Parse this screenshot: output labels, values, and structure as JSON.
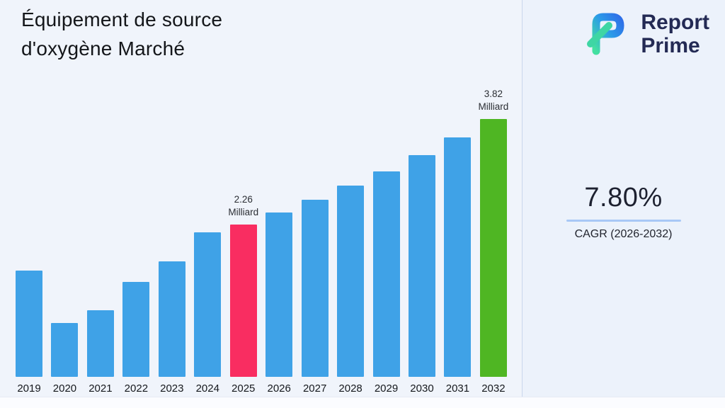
{
  "header": {
    "title_line1": "Équipement de source",
    "title_line2": "d'oxygène Marché"
  },
  "logo": {
    "word1": "Report",
    "word2": "Prime",
    "mark_colors": {
      "teal": "#3ED6A4",
      "blue": "#2E6FE8"
    }
  },
  "stats": {
    "value": "7.80%",
    "label": "CAGR (2026-2032)",
    "underline_color": "#a8c8f6"
  },
  "chart_data": {
    "type": "bar",
    "title": "Équipement de source d'oxygène Marché",
    "unit": "Milliard",
    "categories": [
      "2019",
      "2020",
      "2021",
      "2022",
      "2023",
      "2024",
      "2025",
      "2026",
      "2027",
      "2028",
      "2029",
      "2030",
      "2031",
      "2032"
    ],
    "values": [
      1.58,
      0.8,
      0.99,
      1.41,
      1.71,
      2.14,
      2.26,
      2.44,
      2.63,
      2.83,
      3.05,
      3.29,
      3.55,
      3.82
    ],
    "ylim": [
      0,
      4.2
    ],
    "xlabel": "",
    "ylabel": "",
    "grid": false,
    "legend": false,
    "bar_colors": {
      "default": "#3FA2E7",
      "2025": "#F92D61",
      "2032": "#4FB623"
    },
    "annotations": [
      {
        "category": "2025",
        "lines": [
          "2.26",
          "Milliard"
        ]
      },
      {
        "category": "2032",
        "lines": [
          "3.82",
          "Milliard"
        ]
      }
    ]
  }
}
